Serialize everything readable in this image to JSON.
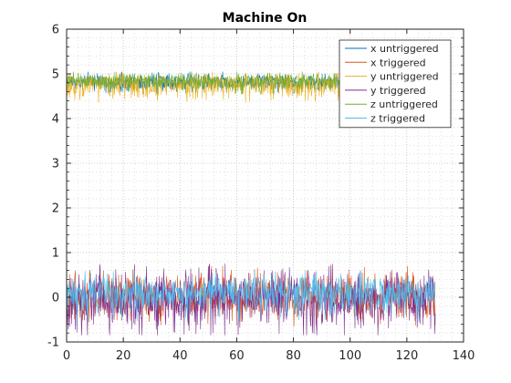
{
  "chart_data": {
    "type": "line",
    "title": "Machine On",
    "xlabel": "",
    "ylabel": "",
    "xlim": [
      0,
      140
    ],
    "ylim": [
      -1,
      6
    ],
    "xticks": [
      0,
      20,
      40,
      60,
      80,
      100,
      120,
      140
    ],
    "yticks": [
      -1,
      0,
      1,
      2,
      3,
      4,
      5,
      6
    ],
    "xtick_labels": [
      "0",
      "20",
      "40",
      "60",
      "80",
      "100",
      "120",
      "140"
    ],
    "ytick_labels": [
      "-1",
      "0",
      "1",
      "2",
      "3",
      "4",
      "5",
      "6"
    ],
    "grid": "major and minor dotted",
    "legend_position": "top-right",
    "x_end": 130,
    "series": [
      {
        "name": "x untriggered",
        "color": "#0072BD",
        "approx_center": 4.8,
        "approx_min": 4.55,
        "approx_max": 5.05
      },
      {
        "name": "x triggered",
        "color": "#D95319",
        "approx_center": 0.0,
        "approx_min": -0.65,
        "approx_max": 0.7
      },
      {
        "name": "y untriggered",
        "color": "#EDB120",
        "approx_center": 4.8,
        "approx_min": 4.35,
        "approx_max": 5.05
      },
      {
        "name": "y triggered",
        "color": "#7E2F8E",
        "approx_center": 0.0,
        "approx_min": -0.85,
        "approx_max": 0.75
      },
      {
        "name": "z untriggered",
        "color": "#77AC30",
        "approx_center": 4.85,
        "approx_min": 4.55,
        "approx_max": 5.05
      },
      {
        "name": "z triggered",
        "color": "#4DBEEE",
        "approx_center": 0.1,
        "approx_min": -0.55,
        "approx_max": 0.6
      }
    ]
  }
}
